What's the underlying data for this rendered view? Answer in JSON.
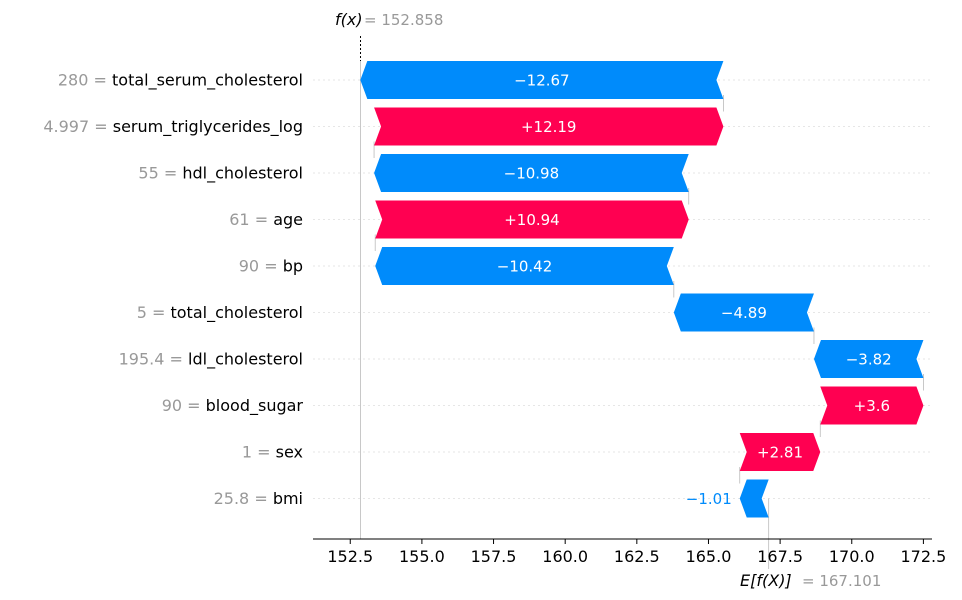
{
  "chart_data": {
    "type": "waterfall",
    "fx_label": "f(x)",
    "fx_value": "152.858",
    "fx": 152.858,
    "base_label": "E[f(X)]",
    "base_value_text": "167.101",
    "base_value": 167.101,
    "xlim": [
      151.2,
      172.8
    ],
    "ticks": [
      152.5,
      155.0,
      157.5,
      160.0,
      162.5,
      165.0,
      167.5,
      170.0,
      172.5
    ],
    "tick_labels": [
      "152.5",
      "155.0",
      "157.5",
      "160.0",
      "162.5",
      "165.0",
      "167.5",
      "170.0",
      "172.5"
    ],
    "features": [
      {
        "value": "280",
        "name": "total_serum_cholesterol",
        "contribution": -12.67,
        "label": "−12.67"
      },
      {
        "value": "4.997",
        "name": "serum_triglycerides_log",
        "contribution": 12.19,
        "label": "+12.19"
      },
      {
        "value": "55",
        "name": "hdl_cholesterol",
        "contribution": -10.98,
        "label": "−10.98"
      },
      {
        "value": "61",
        "name": "age",
        "contribution": 10.94,
        "label": "+10.94"
      },
      {
        "value": "90",
        "name": "bp",
        "contribution": -10.42,
        "label": "−10.42"
      },
      {
        "value": "5",
        "name": "total_cholesterol",
        "contribution": -4.89,
        "label": "−4.89"
      },
      {
        "value": "195.4",
        "name": "ldl_cholesterol",
        "contribution": -3.82,
        "label": "−3.82"
      },
      {
        "value": "90",
        "name": "blood_sugar",
        "contribution": 3.6,
        "label": "+3.6"
      },
      {
        "value": "1",
        "name": "sex",
        "contribution": 2.81,
        "label": "+2.81"
      },
      {
        "value": "25.8",
        "name": "bmi",
        "contribution": -1.01,
        "label": "−1.01"
      }
    ],
    "colors": {
      "positive": "#ff0051",
      "negative": "#008bfb",
      "value_text": "#999999",
      "name_text": "#000000",
      "grid": "#e6e6e6",
      "axis": "#000000"
    }
  }
}
